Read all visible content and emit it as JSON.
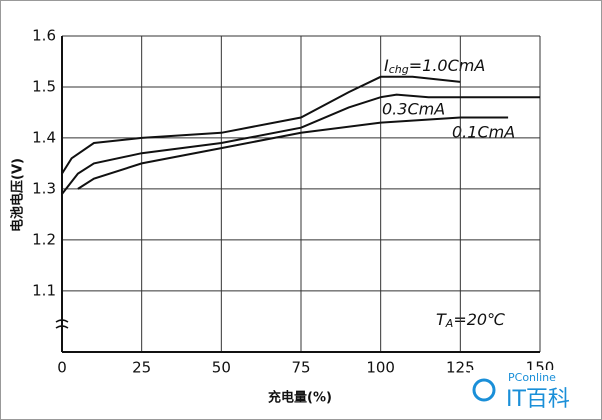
{
  "chart_data": {
    "type": "line",
    "x_label": "充电量(%)",
    "y_label": "电池电压(V)",
    "xlim": [
      0,
      150
    ],
    "xticks": [
      0,
      25,
      50,
      75,
      100,
      125,
      150
    ],
    "ylim": [
      0.98,
      1.6
    ],
    "yticks": [
      1.1,
      1.2,
      1.3,
      1.4,
      1.5,
      1.6
    ],
    "grid": true,
    "series": [
      {
        "name": "1.0CmA",
        "color": "#111111",
        "x": [
          0,
          3,
          10,
          25,
          50,
          75,
          90,
          100,
          110,
          125
        ],
        "values": [
          1.33,
          1.36,
          1.39,
          1.4,
          1.41,
          1.44,
          1.49,
          1.52,
          1.52,
          1.51
        ]
      },
      {
        "name": "0.3CmA",
        "color": "#111111",
        "x": [
          0,
          5,
          10,
          25,
          50,
          75,
          90,
          100,
          105,
          115,
          125,
          150
        ],
        "values": [
          1.29,
          1.33,
          1.35,
          1.37,
          1.39,
          1.42,
          1.46,
          1.48,
          1.485,
          1.48,
          1.48,
          1.48
        ]
      },
      {
        "name": "0.1CmA",
        "color": "#111111",
        "x": [
          5,
          10,
          25,
          50,
          75,
          100,
          125,
          140
        ],
        "values": [
          1.3,
          1.32,
          1.35,
          1.38,
          1.41,
          1.43,
          1.44,
          1.44
        ]
      }
    ],
    "annotations": [
      {
        "symbol": "I",
        "subscript": "chg",
        "text": "=1.0CmA"
      },
      {
        "text": "0.3CmA"
      },
      {
        "text": "0.1CmA"
      },
      {
        "symbol": "T",
        "subscript": "A",
        "text": "=20℃"
      }
    ]
  },
  "watermark": {
    "brand": "PConline",
    "name": "IT百科"
  }
}
